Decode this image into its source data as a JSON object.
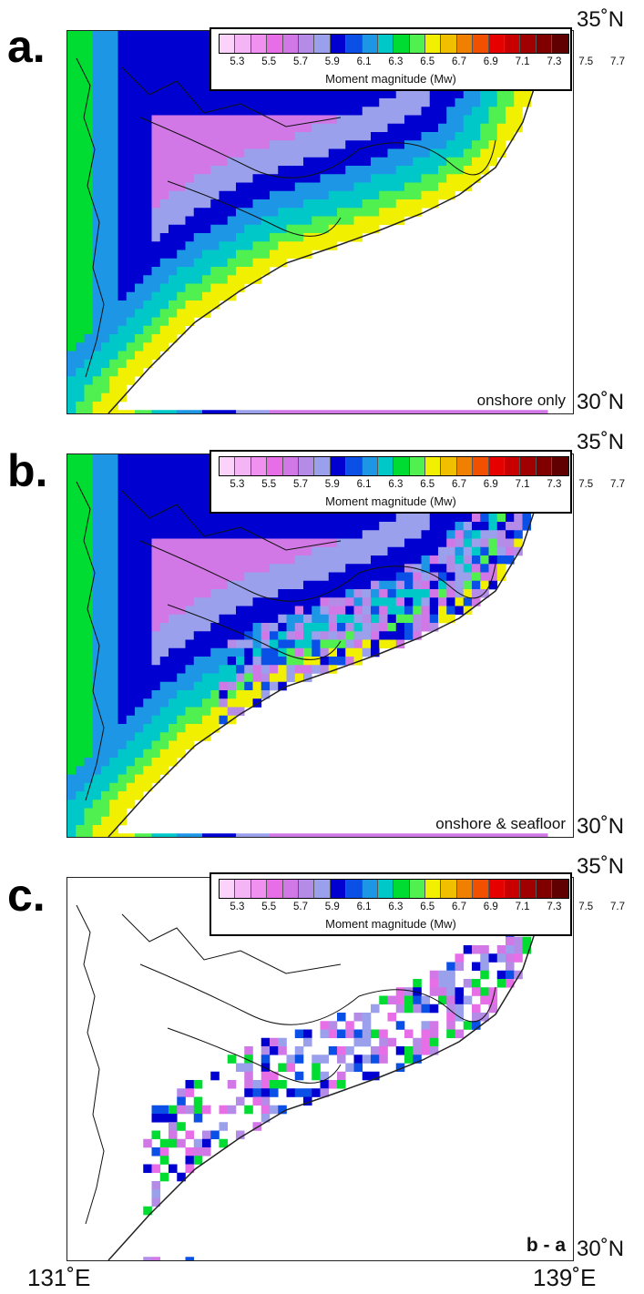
{
  "panels": [
    {
      "letter": "a.",
      "corner_label": "onshore only"
    },
    {
      "letter": "b.",
      "corner_label": "onshore & seafloor"
    },
    {
      "letter": "c.",
      "corner_label": "b - a"
    }
  ],
  "lat_labels": {
    "north": "35˚N",
    "south": "30˚N"
  },
  "lon_labels": {
    "west": "131˚E",
    "east": "139˚E"
  },
  "legend": {
    "title": "Moment magnitude (Mw)",
    "ticks": [
      "5.3",
      "5.5",
      "5.7",
      "5.9",
      "6.1",
      "6.3",
      "6.5",
      "6.7",
      "6.9",
      "7.1",
      "7.3",
      "7.5",
      "7.7"
    ],
    "colors": [
      "#fad2fa",
      "#f5b4f5",
      "#f090f0",
      "#e86ee8",
      "#d278e6",
      "#b48ce8",
      "#9aa0ec",
      "#0000d0",
      "#0a50e6",
      "#1e96e6",
      "#00c8c8",
      "#00dc32",
      "#50f050",
      "#f0f000",
      "#f0c000",
      "#f08000",
      "#f05000",
      "#e60000",
      "#c80000",
      "#a00000",
      "#800000",
      "#600000"
    ]
  }
}
